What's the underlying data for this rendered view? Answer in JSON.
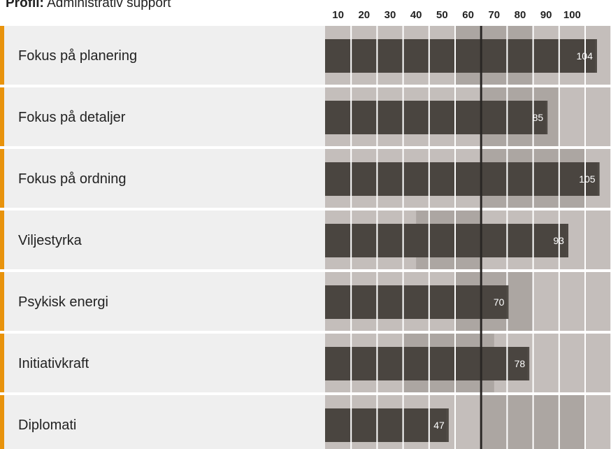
{
  "header": {
    "profile_label": "Profil:",
    "profile_value": "Administrativ support"
  },
  "colors": {
    "row_bg": "#efefef",
    "row_accent": "#e8930c",
    "band": "#c4bebb",
    "norm_zone": "#aca6a2",
    "bar": "#4a4540",
    "reference_line": "#2a2725",
    "grid_line": "#ffffff"
  },
  "chart_data": {
    "type": "bar",
    "orientation": "horizontal",
    "title": "",
    "x_ticks": [
      10,
      20,
      30,
      40,
      50,
      60,
      70,
      80,
      90,
      100
    ],
    "xlim": [
      0,
      110
    ],
    "reference_line": 60,
    "categories": [
      "Fokus på planering",
      "Fokus på detaljer",
      "Fokus på ordning",
      "Viljestyrka",
      "Psykisk energi",
      "Initiativkraft",
      "Diplomati"
    ],
    "values": [
      104,
      85,
      105,
      93,
      70,
      78,
      47
    ],
    "norm_ranges": [
      [
        50,
        80
      ],
      [
        60,
        90
      ],
      [
        60,
        100
      ],
      [
        35,
        60
      ],
      [
        50,
        80
      ],
      [
        30,
        65
      ],
      [
        60,
        100
      ]
    ]
  }
}
